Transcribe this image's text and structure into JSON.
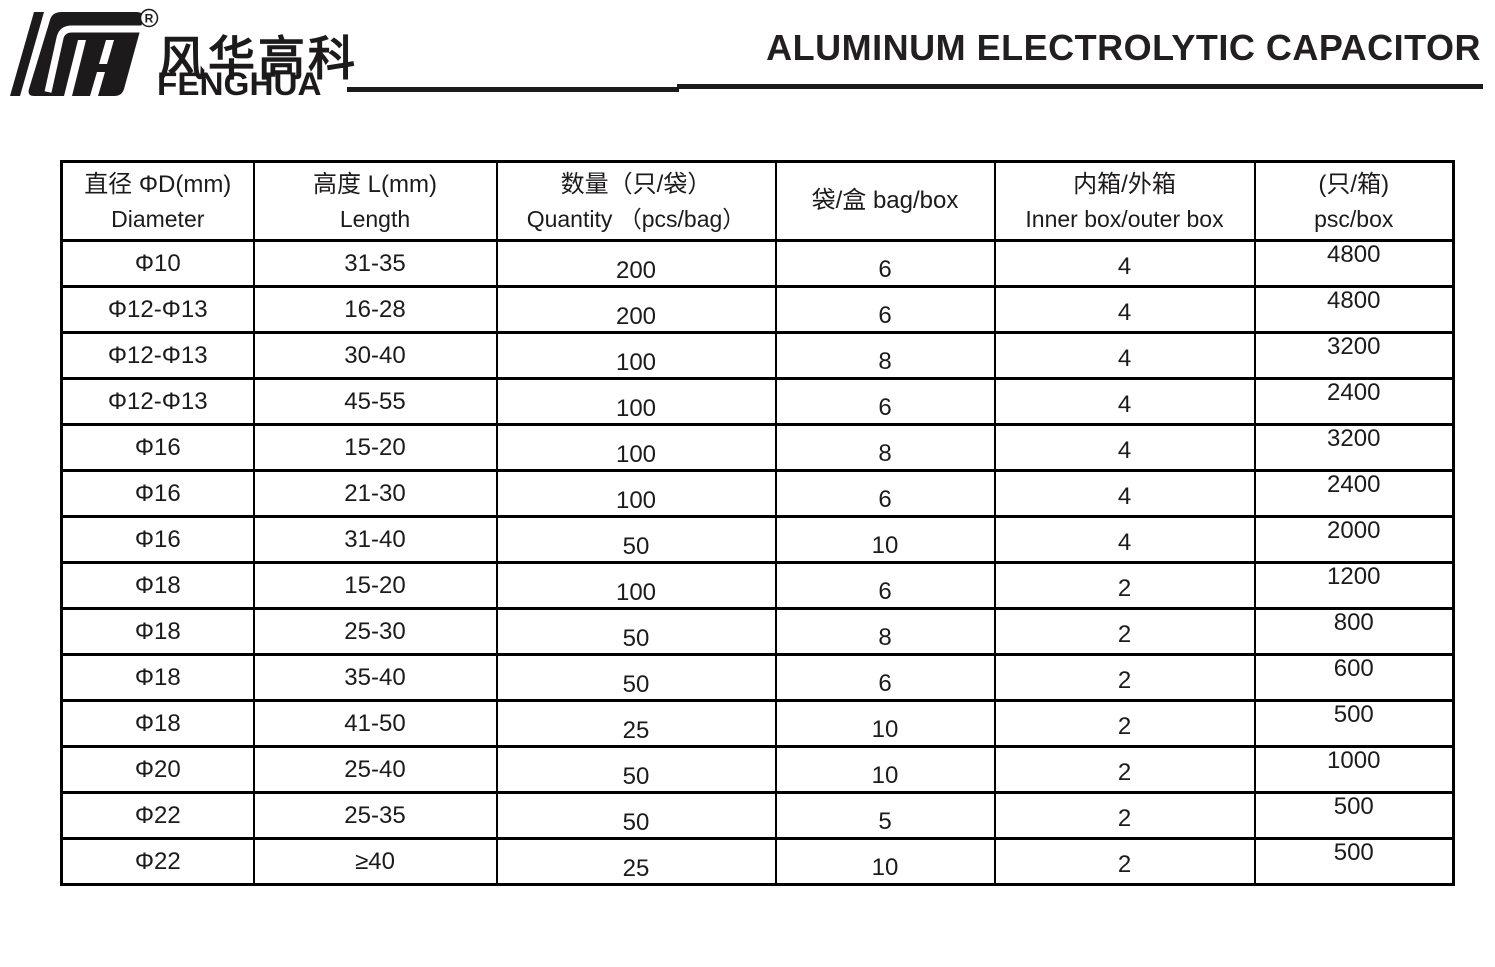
{
  "brand": {
    "registered_mark": "R",
    "company_cn": "风华高科",
    "company_en": "FENGHUA"
  },
  "header": {
    "title": "ALUMINUM ELECTROLYTIC CAPACITOR"
  },
  "table": {
    "columns": [
      {
        "cn": "直径 ΦD(mm)",
        "en": "Diameter"
      },
      {
        "cn": "高度 L(mm)",
        "en": "Length"
      },
      {
        "cn": "数量（只/袋）",
        "en": "Quantity （pcs/bag）"
      },
      {
        "cn": "袋/盒 bag/box",
        "en": ""
      },
      {
        "cn": "内箱/外箱",
        "en": "Inner box/outer box"
      },
      {
        "cn": "(只/箱)",
        "en": "psc/box"
      }
    ],
    "rows": [
      [
        "Φ10",
        "31-35",
        "200",
        "6",
        "4",
        "4800"
      ],
      [
        "Φ12-Φ13",
        "16-28",
        "200",
        "6",
        "4",
        "4800"
      ],
      [
        "Φ12-Φ13",
        "30-40",
        "100",
        "8",
        "4",
        "3200"
      ],
      [
        "Φ12-Φ13",
        "45-55",
        "100",
        "6",
        "4",
        "2400"
      ],
      [
        "Φ16",
        "15-20",
        "100",
        "8",
        "4",
        "3200"
      ],
      [
        "Φ16",
        "21-30",
        "100",
        "6",
        "4",
        "2400"
      ],
      [
        "Φ16",
        "31-40",
        "50",
        "10",
        "4",
        "2000"
      ],
      [
        "Φ18",
        "15-20",
        "100",
        "6",
        "2",
        "1200"
      ],
      [
        "Φ18",
        "25-30",
        "50",
        "8",
        "2",
        "800"
      ],
      [
        "Φ18",
        "35-40",
        "50",
        "6",
        "2",
        "600"
      ],
      [
        "Φ18",
        "41-50",
        "25",
        "10",
        "2",
        "500"
      ],
      [
        "Φ20",
        "25-40",
        "50",
        "10",
        "2",
        "1000"
      ],
      [
        "Φ22",
        "25-35",
        "50",
        "5",
        "2",
        "500"
      ],
      [
        "Φ22",
        "≥40",
        "25",
        "10",
        "2",
        "500"
      ]
    ]
  },
  "colors": {
    "ink": "#1c1a1a",
    "border": "#000000",
    "background": "#ffffff"
  }
}
